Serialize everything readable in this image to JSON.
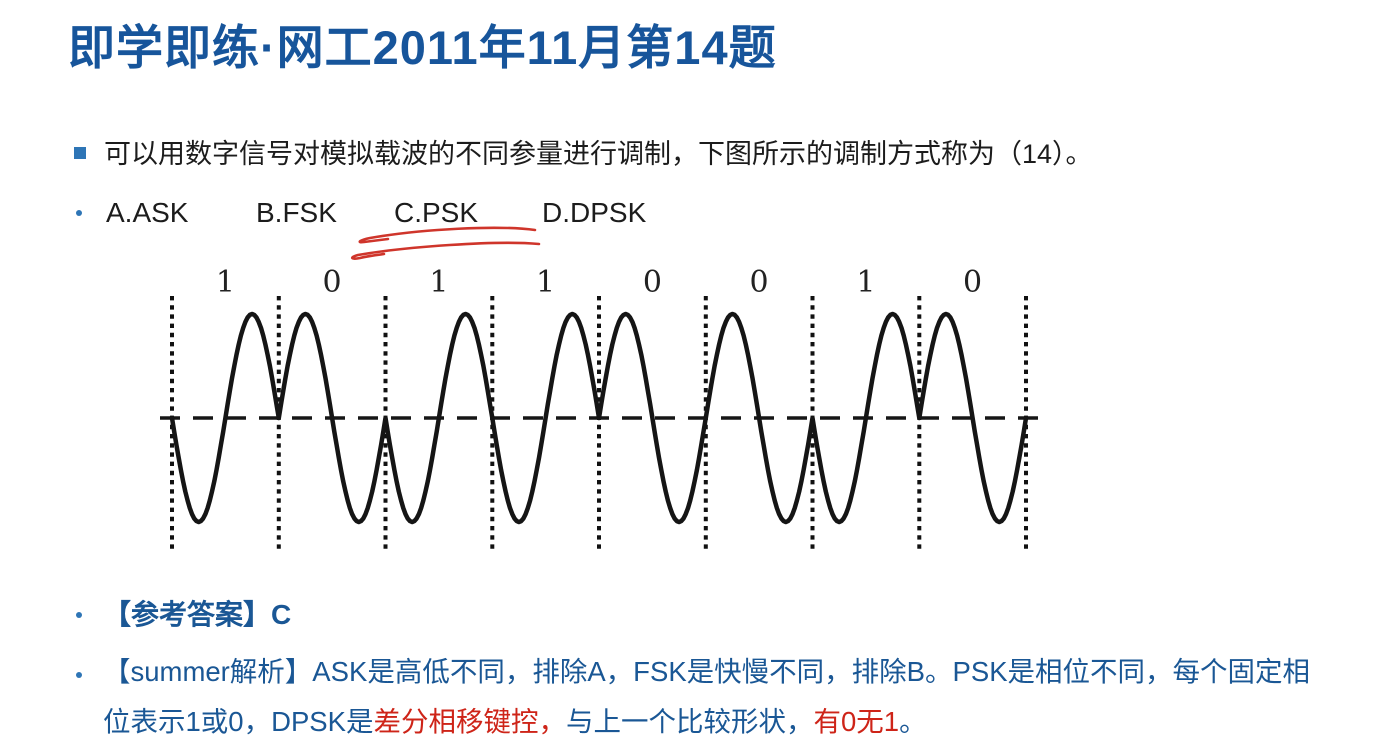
{
  "slide": {
    "title": "即学即练·网工2011年11月第14题",
    "question": {
      "text": "可以用数字信号对模拟载波的不同参量进行调制，下图所示的调制方式称为（14）。",
      "options": [
        "A.ASK",
        "B.FSK",
        "C.PSK",
        "D.DPSK"
      ],
      "marked_option": "C.PSK"
    },
    "figure": {
      "type": "psk-waveform",
      "bits": [
        "1",
        "0",
        "1",
        "1",
        "0",
        "0",
        "1",
        "0"
      ],
      "bit_one_phase": "starts-downward",
      "bit_zero_phase": "starts-upward",
      "cycles_per_bit": 1
    },
    "answer": {
      "label": "【参考答案】C"
    },
    "analysis": {
      "line1": "【summer解析】ASK是高低不同，排除A，FSK是快慢不同，排除B。PSK是相位不同，每个固定相",
      "line2_segments": [
        {
          "text": "位表示1或0，DPSK是",
          "color": "blue"
        },
        {
          "text": "差分相移键控，",
          "color": "red"
        },
        {
          "text": "与上一个比较形状，",
          "color": "blue"
        },
        {
          "text": "有0无1",
          "color": "red"
        },
        {
          "text": "。",
          "color": "blue"
        }
      ]
    },
    "colors": {
      "title_blue": "#17559b",
      "bullet_blue": "#2e75b6",
      "body_text": "#1c1c1c",
      "answer_blue": "#1a5795",
      "highlight_red": "#ce2418",
      "underline_red": "#cf352b",
      "wave_black": "#151515"
    }
  }
}
